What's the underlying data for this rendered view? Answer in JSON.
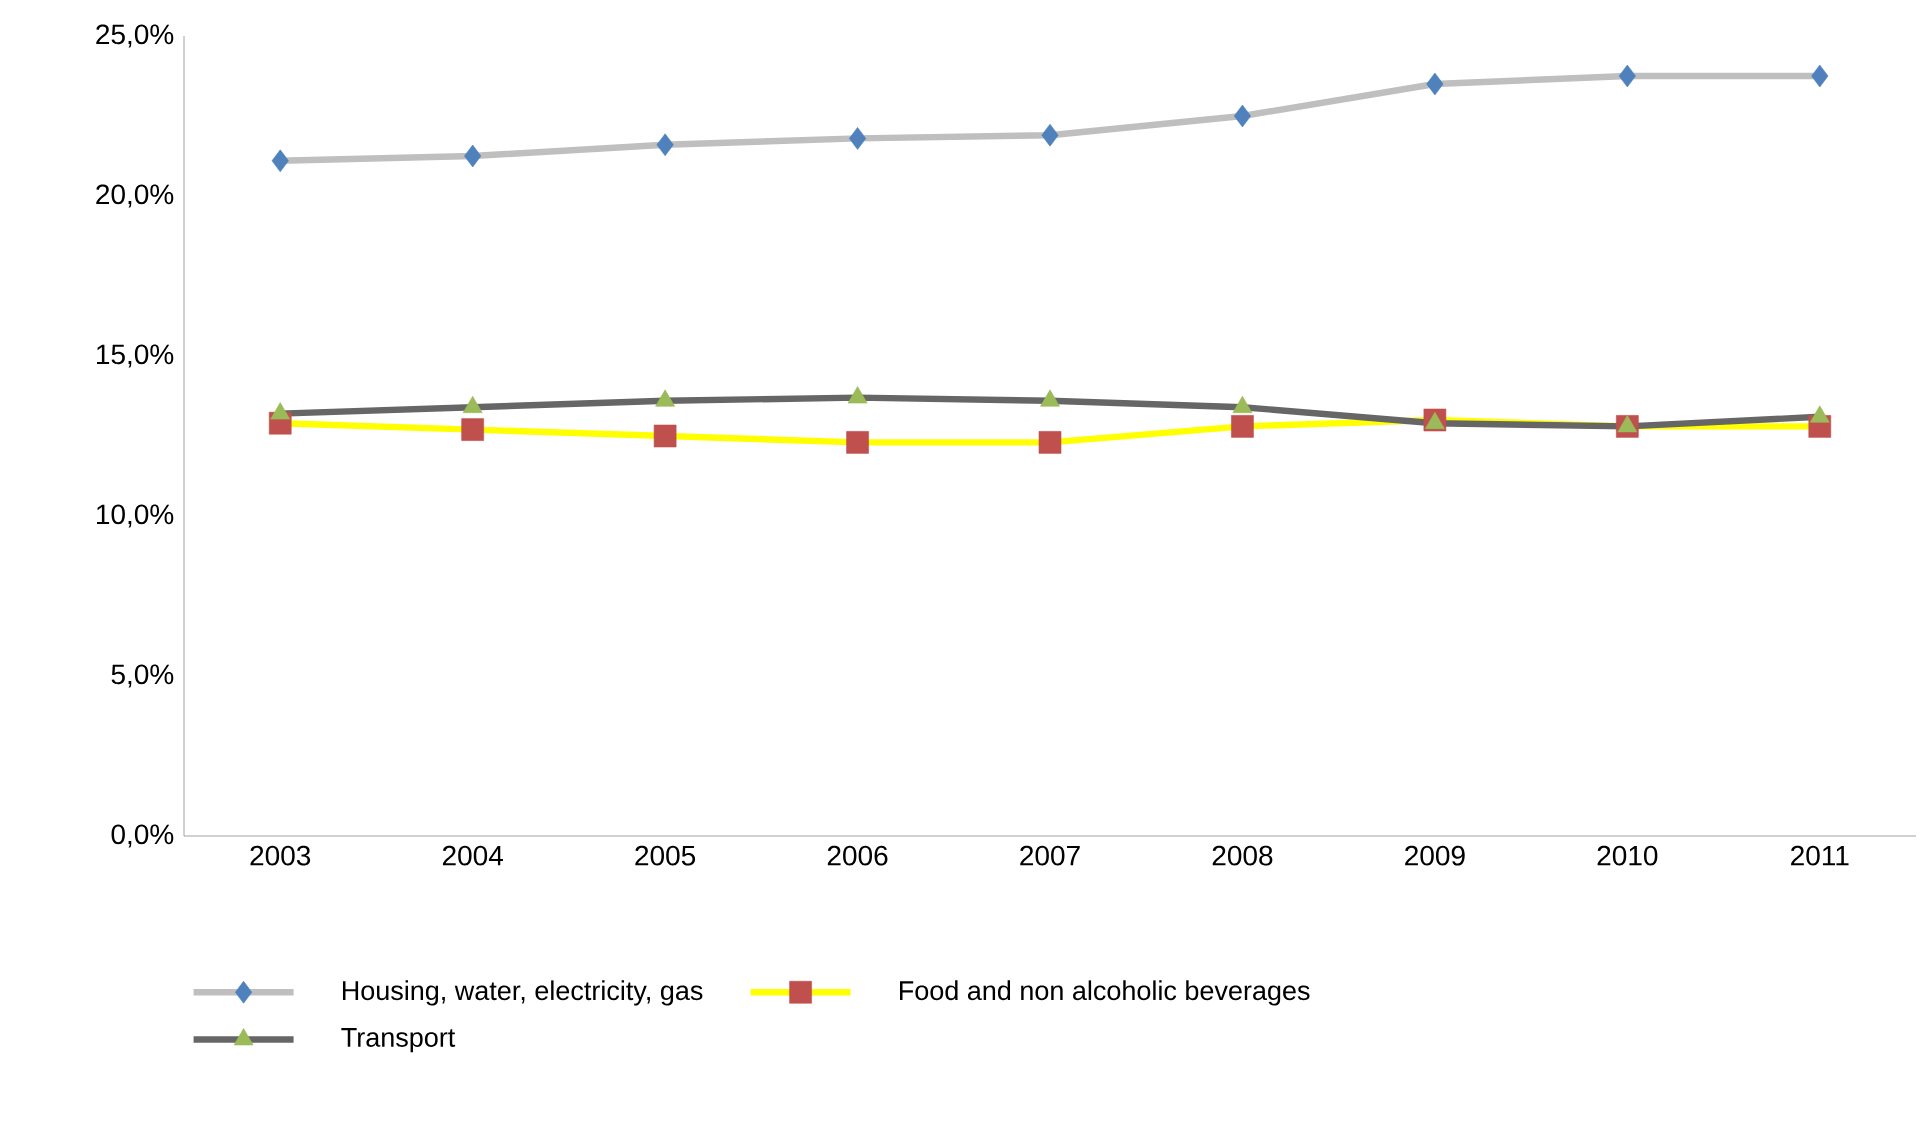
{
  "chart_data": {
    "type": "line",
    "categories": [
      "2003",
      "2004",
      "2005",
      "2006",
      "2007",
      "2008",
      "2009",
      "2010",
      "2011"
    ],
    "series": [
      {
        "name": "Housing, water, electricity, gas",
        "color": "#bfbfbf",
        "colors": [
          "#4f81bd",
          "#4f81bd",
          "#4f81bd",
          "#4f81bd",
          "#4f81bd",
          "#4f81bd",
          "#4f81bd",
          "#4f81bd",
          "#4f81bd"
        ],
        "marker": "diamond",
        "values": [
          21.1,
          21.25,
          21.6,
          21.8,
          21.9,
          22.5,
          23.5,
          23.75,
          23.75
        ]
      },
      {
        "name": "Food and non alcoholic beverages",
        "color": "#ffff00",
        "colors": [
          "#c0504d",
          "#c0504d",
          "#c0504d",
          "#c0504d",
          "#c0504d",
          "#c0504d",
          "#c0504d",
          "#c0504d",
          "#c0504d"
        ],
        "marker": "square",
        "values": [
          12.9,
          12.7,
          12.5,
          12.3,
          12.3,
          12.8,
          13.0,
          12.8,
          12.8
        ]
      },
      {
        "name": "Transport",
        "color": "#666666",
        "colors": [
          "#9bbb59",
          "#9bbb59",
          "#9bbb59",
          "#9bbb59",
          "#9bbb59",
          "#9bbb59",
          "#9bbb59",
          "#9bbb59",
          "#9bbb59"
        ],
        "marker": "triangle",
        "values": [
          13.2,
          13.4,
          13.6,
          13.7,
          13.6,
          13.4,
          12.9,
          12.8,
          13.1
        ]
      }
    ],
    "ylim": [
      0,
      25
    ],
    "yticks": [
      {
        "value": 0,
        "label": "0,0%"
      },
      {
        "value": 5,
        "label": "5,0%"
      },
      {
        "value": 10,
        "label": "10,0%"
      },
      {
        "value": 15,
        "label": "15,0%"
      },
      {
        "value": 20,
        "label": "20,0%"
      },
      {
        "value": 25,
        "label": "25,0%"
      }
    ],
    "grid": false,
    "legend": "bottom"
  }
}
